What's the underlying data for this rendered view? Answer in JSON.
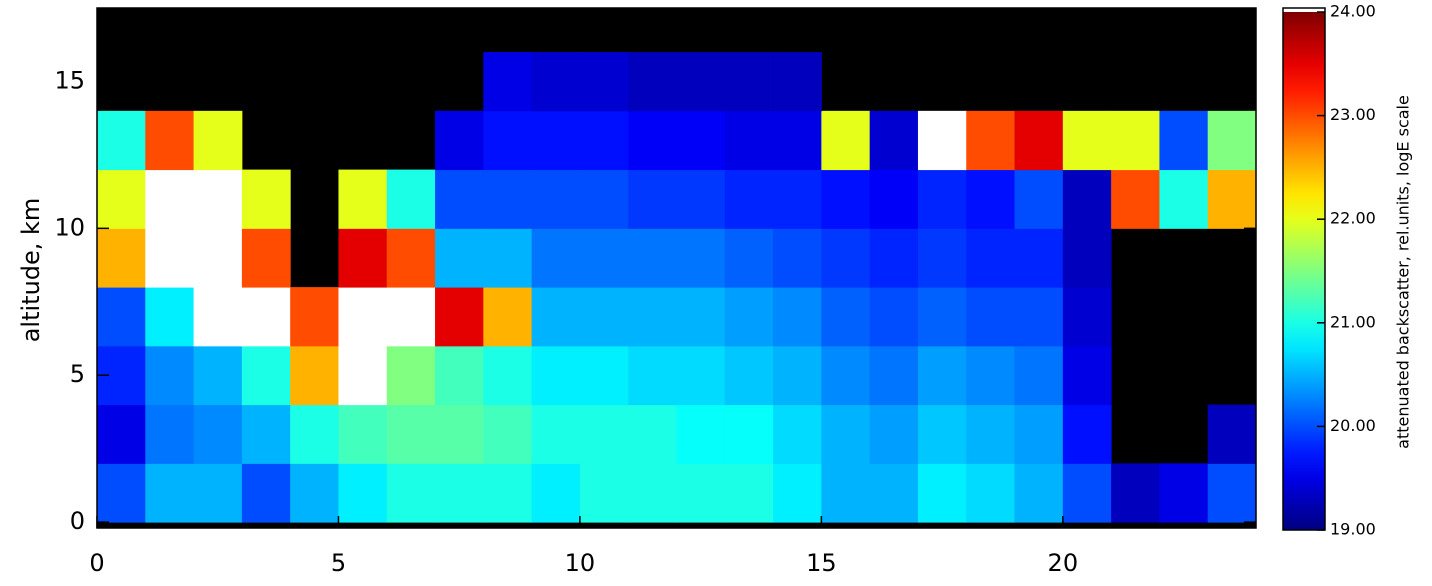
{
  "chart_data": {
    "type": "heatmap",
    "y_label": "altitude, km",
    "colorbar_label": "attenuated backscatter, rel.units, logE scale",
    "x_bins": [
      0,
      1,
      2,
      3,
      4,
      5,
      6,
      7,
      8,
      9,
      10,
      11,
      12,
      13,
      14,
      15,
      16,
      17,
      18,
      19,
      20,
      21,
      22,
      23,
      24
    ],
    "y_bins": [
      0,
      2,
      4,
      6,
      8,
      10,
      12,
      14,
      16
    ],
    "z": [
      [
        20,
        20.5,
        20.5,
        20,
        20.5,
        20.8,
        21,
        21,
        21,
        20.8,
        21,
        21,
        21,
        21,
        20.8,
        20.5,
        20.5,
        20.8,
        20.7,
        20.5,
        20,
        19.3,
        19.5,
        20
      ],
      [
        19.5,
        20.2,
        20.3,
        20.5,
        21,
        21.2,
        21.3,
        21.3,
        21.2,
        21,
        21,
        21,
        20.9,
        20.9,
        20.7,
        20.5,
        20.4,
        20.6,
        20.5,
        20.4,
        19.7,
        null,
        null,
        19.3
      ],
      [
        19.8,
        20.3,
        20.5,
        21,
        22.5,
        24,
        21.5,
        21.2,
        21,
        20.8,
        20.8,
        20.7,
        20.7,
        20.6,
        20.5,
        20.3,
        20.2,
        20.4,
        20.3,
        20.2,
        19.5,
        null,
        null,
        null
      ],
      [
        20,
        20.8,
        24,
        24,
        23,
        24,
        24,
        23.5,
        22.5,
        20.5,
        20.5,
        20.5,
        20.5,
        20.4,
        20.3,
        20.1,
        20,
        20.1,
        20,
        20,
        19.4,
        null,
        null,
        null
      ],
      [
        22.5,
        24,
        24,
        23,
        null,
        23.5,
        23,
        20.5,
        20.5,
        20.2,
        20.2,
        20.2,
        20.2,
        20.1,
        20,
        19.9,
        19.8,
        19.9,
        19.8,
        19.8,
        19.3,
        null,
        null,
        null
      ],
      [
        22,
        24,
        24,
        22,
        null,
        22,
        21,
        20,
        20,
        20,
        20,
        19.9,
        19.9,
        19.8,
        19.8,
        19.7,
        19.6,
        19.8,
        19.7,
        20,
        19.3,
        23,
        21,
        22.5
      ],
      [
        21,
        23,
        22,
        null,
        null,
        null,
        null,
        19.5,
        19.7,
        19.7,
        19.7,
        19.6,
        19.6,
        19.5,
        19.5,
        22,
        19.4,
        24,
        23,
        23.5,
        22,
        22,
        20,
        21.5
      ],
      [
        null,
        null,
        null,
        null,
        null,
        null,
        null,
        null,
        19.5,
        19.4,
        19.4,
        19.3,
        19.3,
        19.3,
        19.3,
        null,
        null,
        null,
        null,
        null,
        null,
        null,
        null,
        null
      ]
    ],
    "xlim": [
      0,
      24
    ],
    "xticks": [
      0,
      5,
      10,
      15,
      20
    ],
    "ylim": [
      -0.2,
      17.5
    ],
    "yticks": [
      0,
      5,
      10,
      15
    ],
    "clim": [
      19,
      24
    ],
    "cticks": [
      {
        "value": 19,
        "label": "19.00"
      },
      {
        "value": 20,
        "label": "20.00"
      },
      {
        "value": 21,
        "label": "21.00"
      },
      {
        "value": 22,
        "label": "22.00"
      },
      {
        "value": 23,
        "label": "23.00"
      },
      {
        "value": 24,
        "label": "24.00"
      }
    ],
    "colormap": "jet",
    "over_color": "#ffffff",
    "missing_color": "#000000"
  }
}
